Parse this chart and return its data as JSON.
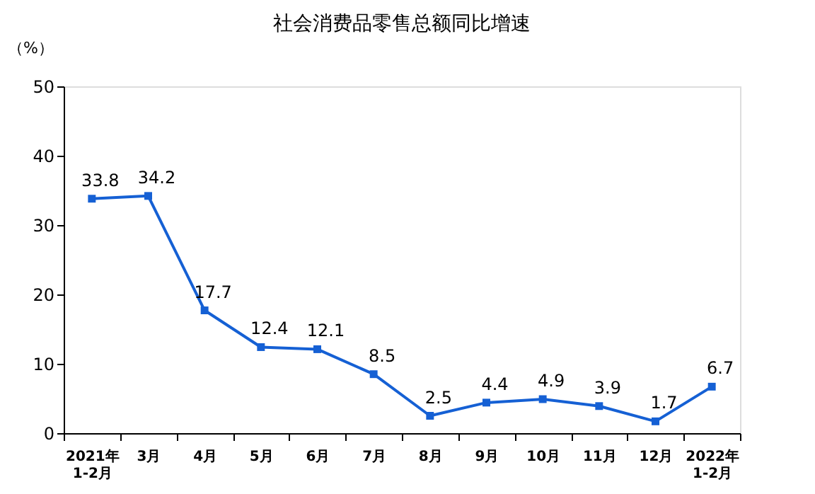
{
  "chart_data": {
    "type": "line",
    "title": "社会消费品零售总额同比增速",
    "ylabel": "（%）",
    "categories": [
      "2021年\n1-2月",
      "3月",
      "4月",
      "5月",
      "6月",
      "7月",
      "8月",
      "9月",
      "10月",
      "11月",
      "12月",
      "2022年\n1-2月"
    ],
    "series": [
      {
        "color": "#1560d4",
        "values": [
          33.8,
          34.2,
          17.7,
          12.4,
          12.1,
          8.5,
          2.5,
          4.4,
          4.9,
          3.9,
          1.7,
          6.7
        ]
      }
    ],
    "ylim": [
      0,
      50
    ],
    "yticks": [
      0,
      10,
      20,
      30,
      40,
      50
    ],
    "grid": false,
    "marker": "square",
    "line_style": "solid",
    "data_labels": true
  }
}
